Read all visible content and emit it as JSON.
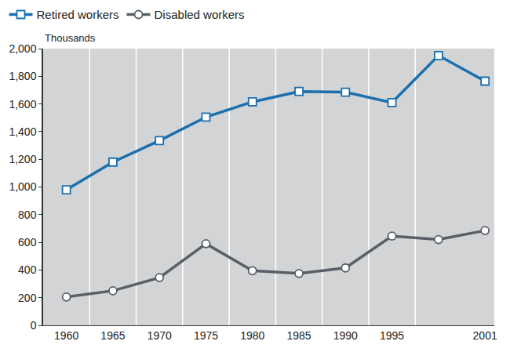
{
  "chart_data": {
    "type": "line",
    "ylabel": "Thousands",
    "categories": [
      "1960",
      "1965",
      "1970",
      "1975",
      "1980",
      "1985",
      "1990",
      "1995",
      null,
      "2001"
    ],
    "series": [
      {
        "name": "Retired workers",
        "color": "#1b6fae",
        "marker": "square",
        "values": [
          980,
          1180,
          1335,
          1505,
          1615,
          1690,
          1685,
          1610,
          1950,
          1765
        ]
      },
      {
        "name": "Disabled workers",
        "color": "#595f66",
        "marker": "circle",
        "values": [
          205,
          250,
          345,
          590,
          395,
          375,
          415,
          645,
          620,
          685
        ]
      }
    ],
    "ylim": [
      0,
      2000
    ],
    "yticks": [
      0,
      200,
      400,
      600,
      800,
      {
        "value": 1000,
        "label": "1,000"
      },
      {
        "value": 1200,
        "label": "1,200"
      },
      {
        "value": 1400,
        "label": "1,400"
      },
      {
        "value": 1600,
        "label": "1,600"
      },
      {
        "value": 1800,
        "label": "1,800"
      },
      {
        "value": 2000,
        "label": "2,000"
      }
    ],
    "grid": true,
    "legend": "top left"
  }
}
